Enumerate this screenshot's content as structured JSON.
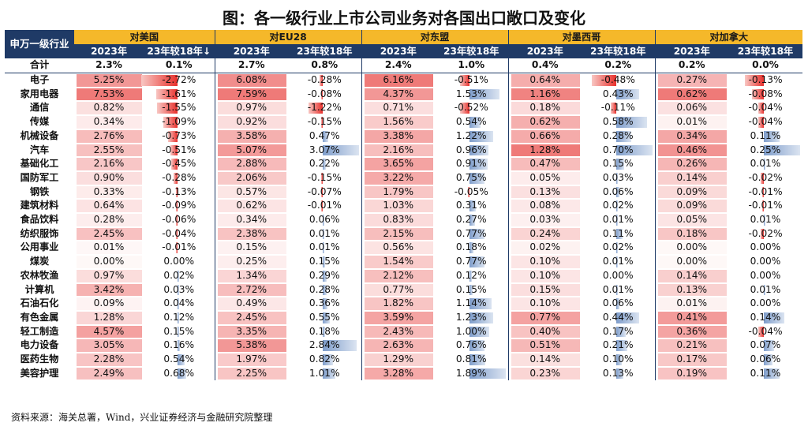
{
  "title": "图：各一级行业上市公司业务对各国出口敞口及变化",
  "first_header": "申万一级行业",
  "groups": [
    "对美国",
    "对EU28",
    "对东盟",
    "对墨西哥",
    "对加拿大"
  ],
  "sub_headers": [
    [
      "2023年",
      "23年较18年↓"
    ],
    [
      "2023年",
      "23年较18年"
    ],
    [
      "2023年",
      "23年较18年"
    ],
    [
      "2023年",
      "23年较18年"
    ],
    [
      "2023年",
      "23年较18年"
    ]
  ],
  "total": {
    "label": "合计",
    "values": [
      [
        "2.3%",
        "0.1%"
      ],
      [
        "2.7%",
        "0.8%"
      ],
      [
        "2.4%",
        "1.0%"
      ],
      [
        "0.4%",
        "0.2%"
      ],
      [
        "0.2%",
        "0.0%"
      ]
    ]
  },
  "rows": [
    {
      "industry": "电子",
      "values": [
        [
          "5.25%",
          "-2.72%"
        ],
        [
          "6.08%",
          "-0.28%"
        ],
        [
          "6.16%",
          "-0.51%"
        ],
        [
          "0.64%",
          "-0.48%"
        ],
        [
          "0.27%",
          "-0.13%"
        ]
      ]
    },
    {
      "industry": "家用电器",
      "values": [
        [
          "7.53%",
          "-1.61%"
        ],
        [
          "7.59%",
          "-0.08%"
        ],
        [
          "4.37%",
          "1.53%"
        ],
        [
          "1.16%",
          "0.43%"
        ],
        [
          "0.62%",
          "-0.08%"
        ]
      ]
    },
    {
      "industry": "通信",
      "values": [
        [
          "0.82%",
          "-1.55%"
        ],
        [
          "0.97%",
          "-1.22%"
        ],
        [
          "0.71%",
          "-0.52%"
        ],
        [
          "0.18%",
          "-0.11%"
        ],
        [
          "0.06%",
          "-0.04%"
        ]
      ]
    },
    {
      "industry": "传媒",
      "values": [
        [
          "0.34%",
          "-1.09%"
        ],
        [
          "0.92%",
          "-0.15%"
        ],
        [
          "1.56%",
          "0.54%"
        ],
        [
          "0.62%",
          "0.58%"
        ],
        [
          "0.01%",
          "-0.04%"
        ]
      ]
    },
    {
      "industry": "机械设备",
      "values": [
        [
          "2.76%",
          "-0.73%"
        ],
        [
          "3.58%",
          "0.47%"
        ],
        [
          "3.38%",
          "1.22%"
        ],
        [
          "0.66%",
          "0.28%"
        ],
        [
          "0.34%",
          "0.11%"
        ]
      ]
    },
    {
      "industry": "汽车",
      "values": [
        [
          "2.55%",
          "-0.51%"
        ],
        [
          "5.07%",
          "3.07%"
        ],
        [
          "2.16%",
          "0.96%"
        ],
        [
          "1.28%",
          "0.70%"
        ],
        [
          "0.46%",
          "0.25%"
        ]
      ]
    },
    {
      "industry": "基础化工",
      "values": [
        [
          "2.16%",
          "-0.45%"
        ],
        [
          "2.88%",
          "0.22%"
        ],
        [
          "3.65%",
          "0.91%"
        ],
        [
          "0.47%",
          "0.15%"
        ],
        [
          "0.26%",
          "0.01%"
        ]
      ]
    },
    {
      "industry": "国防军工",
      "values": [
        [
          "0.90%",
          "-0.28%"
        ],
        [
          "2.06%",
          "-0.15%"
        ],
        [
          "3.22%",
          "0.75%"
        ],
        [
          "0.05%",
          "0.03%"
        ],
        [
          "0.14%",
          "-0.02%"
        ]
      ]
    },
    {
      "industry": "钢铁",
      "values": [
        [
          "0.33%",
          "-0.13%"
        ],
        [
          "0.57%",
          "-0.07%"
        ],
        [
          "1.79%",
          "-0.05%"
        ],
        [
          "0.13%",
          "0.06%"
        ],
        [
          "0.09%",
          "-0.01%"
        ]
      ]
    },
    {
      "industry": "建筑材料",
      "values": [
        [
          "0.64%",
          "-0.09%"
        ],
        [
          "0.62%",
          "-0.01%"
        ],
        [
          "1.03%",
          "0.31%"
        ],
        [
          "0.08%",
          "0.02%"
        ],
        [
          "0.09%",
          "-0.01%"
        ]
      ]
    },
    {
      "industry": "食品饮料",
      "values": [
        [
          "0.28%",
          "-0.06%"
        ],
        [
          "0.34%",
          "0.06%"
        ],
        [
          "0.83%",
          "0.27%"
        ],
        [
          "0.03%",
          "0.01%"
        ],
        [
          "0.05%",
          "0.01%"
        ]
      ]
    },
    {
      "industry": "纺织服饰",
      "values": [
        [
          "2.45%",
          "-0.04%"
        ],
        [
          "2.38%",
          "0.01%"
        ],
        [
          "2.15%",
          "0.77%"
        ],
        [
          "0.24%",
          "0.11%"
        ],
        [
          "0.18%",
          "-0.02%"
        ]
      ]
    },
    {
      "industry": "公用事业",
      "values": [
        [
          "0.01%",
          "-0.01%"
        ],
        [
          "0.15%",
          "0.01%"
        ],
        [
          "0.56%",
          "0.18%"
        ],
        [
          "0.02%",
          "0.02%"
        ],
        [
          "0.00%",
          "0.00%"
        ]
      ]
    },
    {
      "industry": "煤炭",
      "values": [
        [
          "0.00%",
          "0.00%"
        ],
        [
          "0.25%",
          "0.15%"
        ],
        [
          "1.54%",
          "0.77%"
        ],
        [
          "0.10%",
          "0.01%"
        ],
        [
          "0.00%",
          "0.00%"
        ]
      ]
    },
    {
      "industry": "农林牧渔",
      "values": [
        [
          "0.97%",
          "0.02%"
        ],
        [
          "1.34%",
          "0.29%"
        ],
        [
          "2.12%",
          "0.12%"
        ],
        [
          "0.10%",
          "0.00%"
        ],
        [
          "0.14%",
          "0.00%"
        ]
      ]
    },
    {
      "industry": "计算机",
      "values": [
        [
          "3.42%",
          "0.03%"
        ],
        [
          "2.72%",
          "0.28%"
        ],
        [
          "0.77%",
          "0.15%"
        ],
        [
          "0.15%",
          "0.01%"
        ],
        [
          "0.13%",
          "0.01%"
        ]
      ]
    },
    {
      "industry": "石油石化",
      "values": [
        [
          "0.09%",
          "0.04%"
        ],
        [
          "0.49%",
          "0.36%"
        ],
        [
          "1.82%",
          "1.14%"
        ],
        [
          "0.10%",
          "0.06%"
        ],
        [
          "0.01%",
          "0.00%"
        ]
      ]
    },
    {
      "industry": "有色金属",
      "values": [
        [
          "1.28%",
          "0.12%"
        ],
        [
          "2.45%",
          "0.55%"
        ],
        [
          "3.59%",
          "1.23%"
        ],
        [
          "0.77%",
          "0.44%"
        ],
        [
          "0.41%",
          "0.14%"
        ]
      ]
    },
    {
      "industry": "轻工制造",
      "values": [
        [
          "4.57%",
          "0.15%"
        ],
        [
          "3.35%",
          "0.18%"
        ],
        [
          "2.43%",
          "1.00%"
        ],
        [
          "0.40%",
          "0.17%"
        ],
        [
          "0.36%",
          "-0.04%"
        ]
      ]
    },
    {
      "industry": "电力设备",
      "values": [
        [
          "3.05%",
          "0.16%"
        ],
        [
          "5.38%",
          "2.84%"
        ],
        [
          "2.63%",
          "0.76%"
        ],
        [
          "0.51%",
          "0.21%"
        ],
        [
          "0.21%",
          "0.07%"
        ]
      ]
    },
    {
      "industry": "医药生物",
      "values": [
        [
          "2.28%",
          "0.54%"
        ],
        [
          "1.97%",
          "0.82%"
        ],
        [
          "1.29%",
          "0.81%"
        ],
        [
          "0.14%",
          "0.10%"
        ],
        [
          "0.17%",
          "0.06%"
        ]
      ]
    },
    {
      "industry": "美容护理",
      "values": [
        [
          "2.49%",
          "0.68%"
        ],
        [
          "2.25%",
          "1.01%"
        ],
        [
          "3.28%",
          "1.89%"
        ],
        [
          "0.23%",
          "0.13%"
        ],
        [
          "0.19%",
          "0.11%"
        ]
      ]
    }
  ],
  "source": "资料来源：海关总署，Wind，兴业证券经济与金融研究院整理",
  "colors": {
    "header_gold": "#f5b82a",
    "header_navy": "#1f3a66",
    "heat_red": "#e8413f",
    "bar_negative": "#e8302c",
    "bar_positive": "#7e9dcb"
  }
}
